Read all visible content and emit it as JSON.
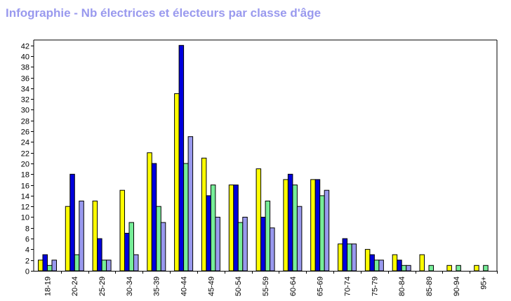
{
  "chart_data": {
    "type": "bar",
    "title": "Infographie - Nb électrices et électeurs par classe d'âge",
    "title_color": "#9999ee",
    "categories": [
      "18-19",
      "20-24",
      "25-29",
      "30-34",
      "35-39",
      "40-44",
      "45-49",
      "50-54",
      "55-59",
      "60-64",
      "65-69",
      "70-74",
      "75-79",
      "80-84",
      "85-89",
      "90-94",
      "95+"
    ],
    "series": [
      {
        "color": "#ffff00",
        "values": [
          2,
          12,
          13,
          15,
          22,
          33,
          21,
          16,
          19,
          17,
          17,
          5,
          4,
          3,
          3,
          1,
          1
        ]
      },
      {
        "color": "#0000dd",
        "values": [
          3,
          18,
          6,
          7,
          20,
          42,
          14,
          16,
          10,
          18,
          17,
          6,
          3,
          2,
          0,
          0,
          0
        ]
      },
      {
        "color": "#77ee99",
        "values": [
          1,
          3,
          2,
          9,
          12,
          20,
          16,
          9,
          13,
          16,
          14,
          5,
          2,
          1,
          1,
          1,
          1
        ]
      },
      {
        "color": "#9999ee",
        "values": [
          2,
          13,
          2,
          3,
          9,
          25,
          10,
          10,
          8,
          12,
          15,
          5,
          2,
          1,
          0,
          0,
          0
        ]
      }
    ],
    "ylim": [
      0,
      43
    ],
    "yticks": [
      0,
      2,
      4,
      6,
      8,
      10,
      12,
      14,
      16,
      18,
      20,
      22,
      24,
      26,
      28,
      30,
      32,
      34,
      36,
      38,
      40,
      42
    ],
    "xlabel": "",
    "ylabel": "",
    "grid": false,
    "legend": "none"
  }
}
